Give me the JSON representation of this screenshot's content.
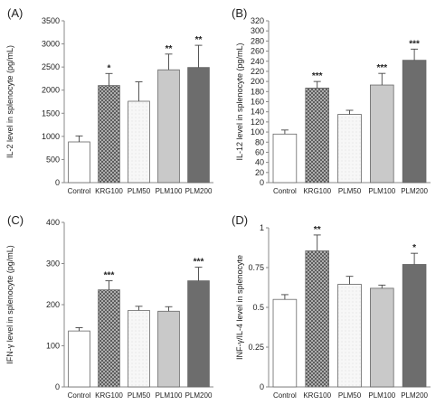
{
  "colors": {
    "axis": "#8a8a8a",
    "bar_outline": "#666666",
    "control": "#ffffff",
    "krg100": "#7a7a7a",
    "plm50": "#f3f3f3",
    "plm100": "#c9c9c9",
    "plm200": "#6d6d6d"
  },
  "chart_data": [
    {
      "panel_label": "(A)",
      "type": "bar",
      "ylabel": "IL-2 level in splenocyte (pg/mL)",
      "categories": [
        "Control",
        "KRG100",
        "PLM50",
        "PLM100",
        "PLM200"
      ],
      "values": [
        880,
        2100,
        1760,
        2440,
        2490
      ],
      "errors": [
        130,
        260,
        420,
        340,
        480
      ],
      "significance": [
        "",
        "*",
        "",
        "**",
        "**"
      ],
      "ylim": [
        0,
        3500
      ],
      "yticks": [
        0,
        500,
        1000,
        1500,
        2000,
        2500,
        3000,
        3500
      ],
      "ytick_labels": [
        "0",
        "500",
        "1000",
        "1500",
        "2000",
        "2500",
        "3000",
        "3500"
      ],
      "grid": false
    },
    {
      "panel_label": "(B)",
      "type": "bar",
      "ylabel": "IL-12 level in splenocyte (pg/mL)",
      "categories": [
        "Control",
        "KRG100",
        "PLM50",
        "PLM100",
        "PLM200"
      ],
      "values": [
        96,
        187,
        135,
        193,
        242
      ],
      "errors": [
        8,
        13,
        8,
        23,
        22
      ],
      "significance": [
        "",
        "***",
        "",
        "***",
        "***"
      ],
      "ylim": [
        0,
        320
      ],
      "yticks": [
        0,
        20,
        40,
        60,
        80,
        100,
        120,
        140,
        160,
        180,
        200,
        220,
        240,
        260,
        280,
        300,
        320
      ],
      "ytick_labels": [
        "0",
        "20",
        "40",
        "60",
        "80",
        "100",
        "120",
        "140",
        "160",
        "180",
        "200",
        "220",
        "240",
        "260",
        "280",
        "300",
        "320"
      ],
      "grid": false
    },
    {
      "panel_label": "(C)",
      "type": "bar",
      "ylabel": "IFN-γ level in splenocyte (pg/mL)",
      "categories": [
        "Control",
        "KRG100",
        "PLM50",
        "PLM100",
        "PLM200"
      ],
      "values": [
        136,
        236,
        186,
        184,
        258
      ],
      "errors": [
        8,
        22,
        10,
        11,
        33
      ],
      "significance": [
        "",
        "***",
        "",
        "",
        "***"
      ],
      "ylim": [
        0,
        400
      ],
      "yticks": [
        0,
        100,
        200,
        300,
        400
      ],
      "ytick_labels": [
        "0",
        "100",
        "200",
        "300",
        "400"
      ],
      "grid": false
    },
    {
      "panel_label": "(D)",
      "type": "bar",
      "ylabel": "INF-γ/IL-4 level in splenocyte",
      "categories": [
        "Control",
        "KRG100",
        "PLM50",
        "PLM100",
        "PLM200"
      ],
      "values": [
        0.55,
        0.855,
        0.645,
        0.62,
        0.77
      ],
      "errors": [
        0.03,
        0.1,
        0.05,
        0.02,
        0.07
      ],
      "significance": [
        "",
        "**",
        "",
        "",
        "*"
      ],
      "ylim": [
        0,
        1
      ],
      "yticks": [
        0,
        0.25,
        0.5,
        0.75,
        1
      ],
      "ytick_labels": [
        "0",
        "0.25",
        "0.5",
        "0.75",
        "1"
      ],
      "grid": false
    }
  ]
}
